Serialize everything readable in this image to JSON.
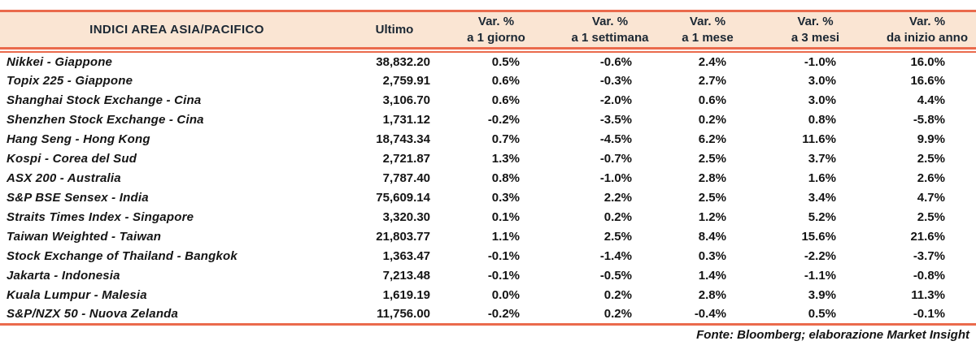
{
  "colors": {
    "accent_orange": "#EA6A4C",
    "header_background": "#FAE5D3",
    "header_text": "#1B2733",
    "body_text": "#141414"
  },
  "table": {
    "title": "INDICI AREA ASIA/PACIFICO",
    "headers": [
      {
        "line1": "Ultimo",
        "line2": ""
      },
      {
        "line1": "Var. %",
        "line2": "a 1 giorno"
      },
      {
        "line1": "Var. %",
        "line2": "a 1 settimana"
      },
      {
        "line1": "Var. %",
        "line2": "a 1 mese"
      },
      {
        "line1": "Var. %",
        "line2": "a 3 mesi"
      },
      {
        "line1": "Var. %",
        "line2": "da inizio anno"
      }
    ],
    "rows": [
      {
        "name": "Nikkei - Giappone",
        "ultimo": "38,832.20",
        "d1": "0.5%",
        "w1": "-0.6%",
        "m1": "2.4%",
        "m3": "-1.0%",
        "ytd": "16.0%"
      },
      {
        "name": "Topix 225 - Giappone",
        "ultimo": "2,759.91",
        "d1": "0.6%",
        "w1": "-0.3%",
        "m1": "2.7%",
        "m3": "3.0%",
        "ytd": "16.6%"
      },
      {
        "name": "Shanghai Stock Exchange - Cina",
        "ultimo": "3,106.70",
        "d1": "0.6%",
        "w1": "-2.0%",
        "m1": "0.6%",
        "m3": "3.0%",
        "ytd": "4.4%"
      },
      {
        "name": "Shenzhen Stock Exchange - Cina",
        "ultimo": "1,731.12",
        "d1": "-0.2%",
        "w1": "-3.5%",
        "m1": "0.2%",
        "m3": "0.8%",
        "ytd": "-5.8%"
      },
      {
        "name": "Hang Seng - Hong Kong",
        "ultimo": "18,743.34",
        "d1": "0.7%",
        "w1": "-4.5%",
        "m1": "6.2%",
        "m3": "11.6%",
        "ytd": "9.9%"
      },
      {
        "name": "Kospi - Corea del Sud",
        "ultimo": "2,721.87",
        "d1": "1.3%",
        "w1": "-0.7%",
        "m1": "2.5%",
        "m3": "3.7%",
        "ytd": "2.5%"
      },
      {
        "name": "ASX 200 - Australia",
        "ultimo": "7,787.40",
        "d1": "0.8%",
        "w1": "-1.0%",
        "m1": "2.8%",
        "m3": "1.6%",
        "ytd": "2.6%"
      },
      {
        "name": "S&P BSE Sensex - India",
        "ultimo": "75,609.14",
        "d1": "0.3%",
        "w1": "2.2%",
        "m1": "2.5%",
        "m3": "3.4%",
        "ytd": "4.7%"
      },
      {
        "name": "Straits Times Index - Singapore",
        "ultimo": "3,320.30",
        "d1": "0.1%",
        "w1": "0.2%",
        "m1": "1.2%",
        "m3": "5.2%",
        "ytd": "2.5%"
      },
      {
        "name": "Taiwan Weighted - Taiwan",
        "ultimo": "21,803.77",
        "d1": "1.1%",
        "w1": "2.5%",
        "m1": "8.4%",
        "m3": "15.6%",
        "ytd": "21.6%"
      },
      {
        "name": "Stock Exchange of Thailand - Bangkok",
        "ultimo": "1,363.47",
        "d1": "-0.1%",
        "w1": "-1.4%",
        "m1": "0.3%",
        "m3": "-2.2%",
        "ytd": "-3.7%"
      },
      {
        "name": "Jakarta - Indonesia",
        "ultimo": "7,213.48",
        "d1": "-0.1%",
        "w1": "-0.5%",
        "m1": "1.4%",
        "m3": "-1.1%",
        "ytd": "-0.8%"
      },
      {
        "name": "Kuala Lumpur - Malesia",
        "ultimo": "1,619.19",
        "d1": "0.0%",
        "w1": "0.2%",
        "m1": "2.8%",
        "m3": "3.9%",
        "ytd": "11.3%"
      },
      {
        "name": "S&P/NZX 50 - Nuova Zelanda",
        "ultimo": "11,756.00",
        "d1": "-0.2%",
        "w1": "0.2%",
        "m1": "-0.4%",
        "m3": "0.5%",
        "ytd": "-0.1%"
      }
    ],
    "footer": "Fonte: Bloomberg; elaborazione Market Insight"
  }
}
